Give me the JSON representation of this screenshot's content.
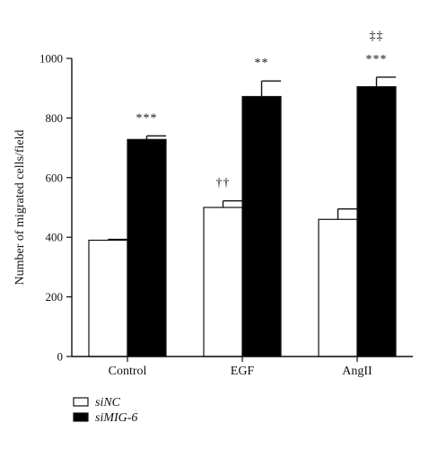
{
  "chart_data": {
    "type": "bar",
    "categories": [
      "Control",
      "EGF",
      "AngII"
    ],
    "ylabel": "Number of migrated cells/field",
    "ylim": [
      0,
      1000
    ],
    "yticks": [
      "0",
      "200",
      "400",
      "600",
      "800",
      "1000"
    ],
    "legend_position": "bottom-left",
    "series": [
      {
        "name": "siNC",
        "fill": "#ffffff",
        "values": [
          390,
          500,
          460
        ],
        "error": [
          3,
          22,
          35
        ],
        "annotations": [
          "",
          "††",
          ""
        ]
      },
      {
        "name": "siMIG-6",
        "fill": "#000000",
        "values": [
          728,
          872,
          905
        ],
        "error": [
          12,
          52,
          32
        ],
        "annotations": [
          "***",
          "**",
          "***"
        ]
      }
    ],
    "extra_annotations": [
      {
        "category": "AngII",
        "series": "siMIG-6",
        "text": "‡‡"
      }
    ]
  }
}
